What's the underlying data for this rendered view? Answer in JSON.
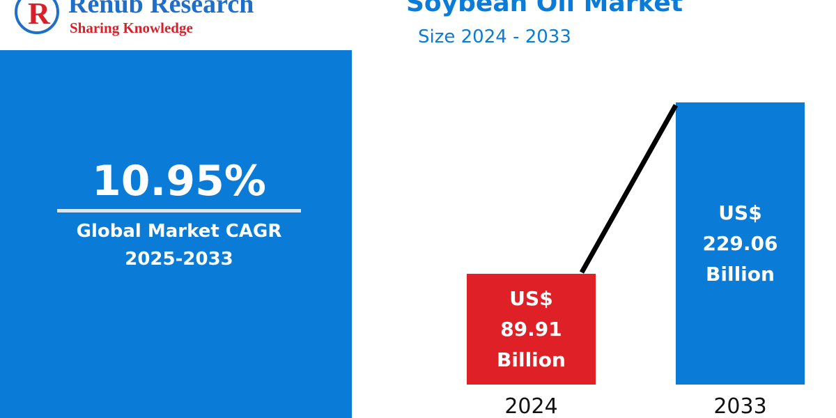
{
  "header": {
    "logo_name": "Renub Research",
    "logo_tagline": "Sharing Knowledge"
  },
  "cagr": {
    "value": "10.95%",
    "label": "Global Market CAGR",
    "period": "2025-2033"
  },
  "chart_data": {
    "type": "bar",
    "title": "Soybean Oil Market",
    "subtitle": "Size 2024 - 2033",
    "categories": [
      "2024",
      "2033"
    ],
    "values": [
      89.91,
      229.06
    ],
    "value_labels": [
      "US$ 89.91 Billion",
      "US$ 229.06 Billion"
    ],
    "colors": [
      "#e02027",
      "#0b7bd8"
    ]
  }
}
